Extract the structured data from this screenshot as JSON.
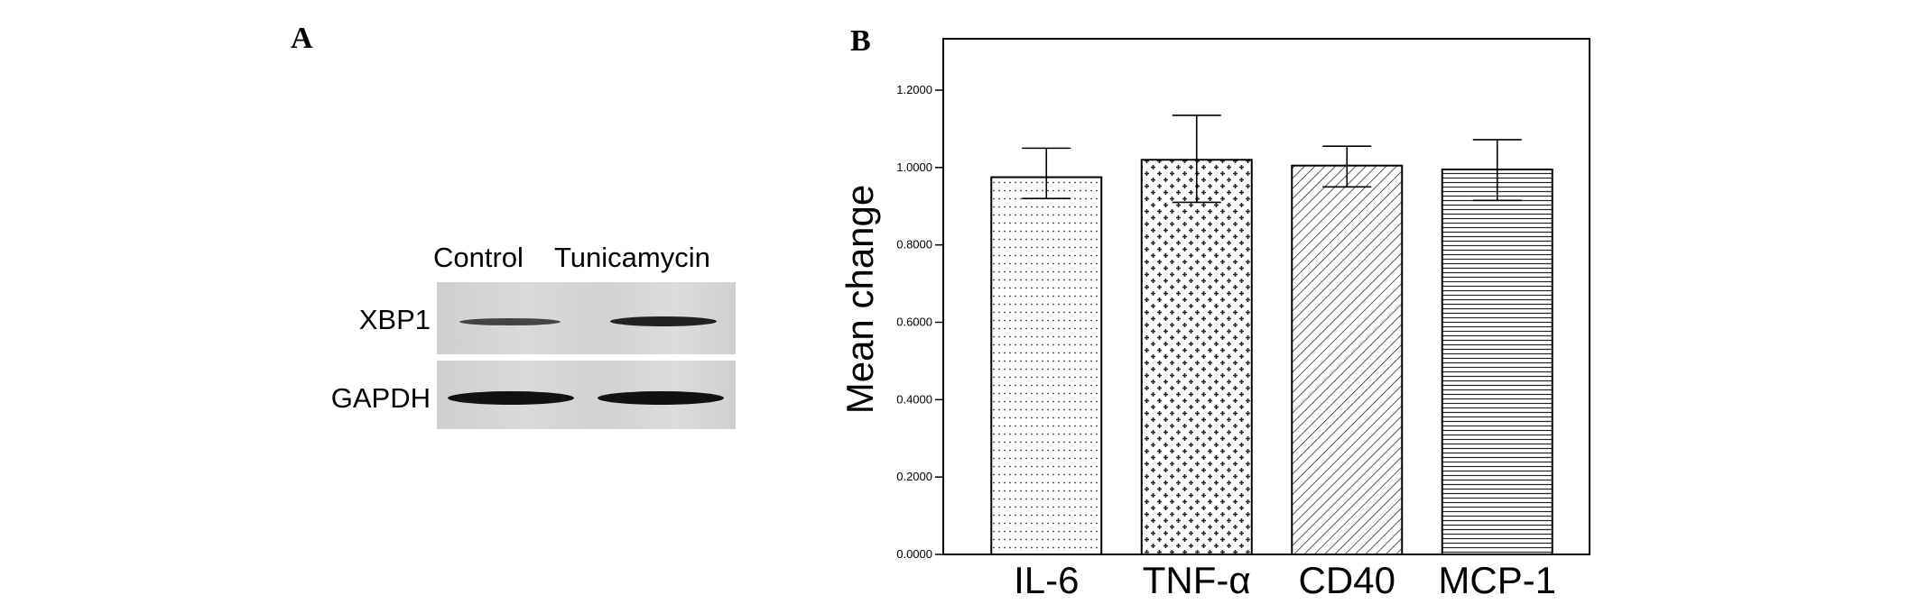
{
  "panel_a": {
    "letter": "A",
    "lane_labels": [
      "Control",
      "Tunicamycin"
    ],
    "row_labels": [
      "XBP1",
      "GAPDH"
    ],
    "band_intensity": {
      "XBP1": [
        0.55,
        0.8
      ],
      "GAPDH": [
        1.0,
        1.0
      ]
    }
  },
  "chart_data": {
    "type": "bar",
    "panel_letter": "B",
    "categories": [
      "IL-6",
      "TNF-α",
      "CD40",
      "MCP-1"
    ],
    "values": [
      0.975,
      1.02,
      1.005,
      0.995
    ],
    "error_upper": [
      1.05,
      1.135,
      1.055,
      1.072
    ],
    "error_lower": [
      0.92,
      0.91,
      0.95,
      0.915
    ],
    "patterns": [
      "dots",
      "crosses",
      "diagonal-hatch",
      "horizontal-lines"
    ],
    "xlabel": "",
    "ylabel": "Mean change",
    "ylim": [
      0,
      1.3
    ],
    "yticks": [
      0,
      0.2,
      0.4,
      0.6,
      0.8,
      1.0,
      1.2
    ],
    "ytick_labels": [
      "0.0000",
      "0.2000",
      "0.4000",
      "0.6000",
      "0.8000",
      "1.0000",
      "1.2000"
    ],
    "grid": false,
    "colors": {
      "bar_fill": "#ffffff",
      "bar_stroke": "#000000",
      "pattern": "#333333"
    }
  }
}
